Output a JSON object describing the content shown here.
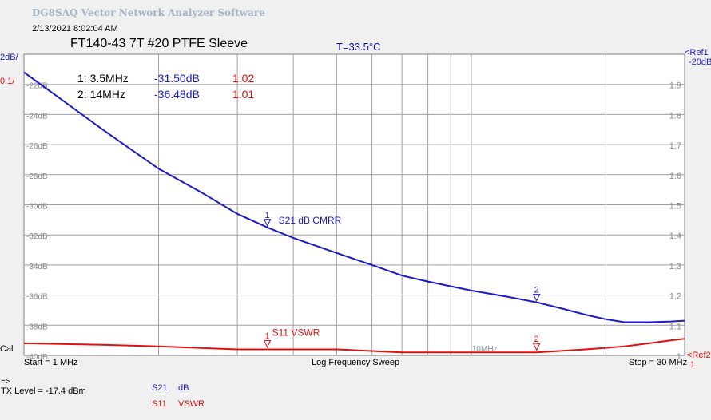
{
  "app_title": "DG8SAQ Vector Network Analyzer Software",
  "timestamp": "2/13/2021   8:02:04 AM",
  "temperature": "T=33.5°C",
  "left_scale": {
    "s21_per_div": "2dB/",
    "s11_per_div": "0.1/"
  },
  "right_refs": {
    "ref1_label": "<Ref1",
    "ref1_value": "-20dB",
    "ref2_label": "<Ref2",
    "ref2_value": "1"
  },
  "cal_label": "Cal",
  "footer": {
    "start": "Start = 1 MHz",
    "mode": "Log Frequency Sweep",
    "stop": "Stop = 30 MHz",
    "arrow": "=>",
    "tx_level": "TX Level = -17.4 dBm"
  },
  "legend": [
    {
      "trace": "S21",
      "unit": "dB",
      "color": "#2020c0"
    },
    {
      "trace": "S11",
      "unit": "VSWR",
      "color": "#d01010"
    }
  ],
  "markers_table": [
    {
      "label": "1: 3.5MHz",
      "s21": "-31.50dB",
      "vswr": "1.02"
    },
    {
      "label": "2: 14MHz",
      "s21": "-36.48dB",
      "vswr": "1.01"
    }
  ],
  "chart_data": {
    "type": "line",
    "title": "FT140-43 7T #20 PTFE Sleeve",
    "x_scale": "log",
    "xlim": [
      1,
      30
    ],
    "x_tick_label": "10MHz",
    "y_left": {
      "label_ticks": [
        "-22dB",
        "-24dB",
        "-26dB",
        "-28dB",
        "-30dB",
        "-32dB",
        "-34dB",
        "-36dB",
        "-38dB",
        "-40dB"
      ],
      "ylim": [
        -40,
        -20
      ]
    },
    "y_right": {
      "label_ticks": [
        "1.9",
        "1.8",
        "1.7",
        "1.6",
        "1.5",
        "1.4",
        "1.3",
        "1.2",
        "1.1",
        "1"
      ],
      "ylim": [
        1.0,
        2.0
      ]
    },
    "grid": true,
    "series": [
      {
        "name": "S21 dB CMRR",
        "color": "#1a1ac8",
        "axis": "left",
        "x": [
          1,
          1.2,
          1.5,
          2,
          2.5,
          3,
          3.5,
          4,
          5,
          6,
          7,
          8,
          10,
          12,
          14,
          16,
          18,
          20,
          22,
          25,
          28,
          30
        ],
        "y": [
          -21.2,
          -22.9,
          -25.0,
          -27.6,
          -29.2,
          -30.6,
          -31.5,
          -32.2,
          -33.2,
          -34.0,
          -34.7,
          -35.1,
          -35.7,
          -36.1,
          -36.48,
          -36.9,
          -37.3,
          -37.6,
          -37.8,
          -37.8,
          -37.75,
          -37.7
        ]
      },
      {
        "name": "S11 VSWR",
        "color": "#e01010",
        "axis": "right",
        "x": [
          1,
          1.5,
          2,
          3,
          3.5,
          5,
          7,
          10,
          12,
          14,
          16,
          18,
          20,
          22,
          25,
          28,
          30
        ],
        "y": [
          1.04,
          1.035,
          1.03,
          1.02,
          1.02,
          1.02,
          1.01,
          1.01,
          1.01,
          1.01,
          1.015,
          1.02,
          1.025,
          1.03,
          1.04,
          1.05,
          1.055
        ]
      }
    ],
    "markers": [
      {
        "id": "1",
        "x": 3.5,
        "s21": -31.5,
        "vswr": 1.02
      },
      {
        "id": "2",
        "x": 14,
        "s21": -36.48,
        "vswr": 1.01
      }
    ]
  }
}
